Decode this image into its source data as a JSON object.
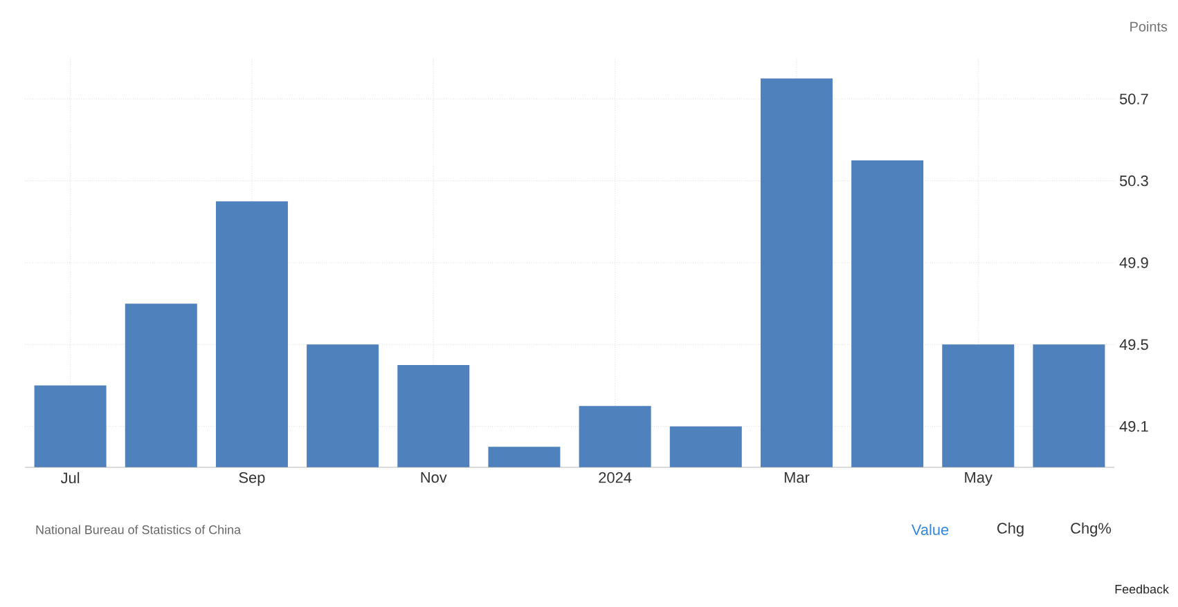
{
  "chart_data": {
    "type": "bar",
    "ylabel": "Points",
    "categories": [
      "Jul",
      null,
      "Sep",
      null,
      "Nov",
      null,
      "2024",
      null,
      "Mar",
      null,
      "May",
      null
    ],
    "values": [
      49.3,
      49.7,
      50.2,
      49.5,
      49.4,
      49.0,
      49.2,
      49.1,
      50.8,
      50.4,
      49.5,
      49.5
    ],
    "color": "#4f81bd",
    "ylim": [
      48.9,
      50.9
    ],
    "yticks": [
      49.1,
      49.5,
      49.9,
      50.3,
      50.7
    ],
    "grid": true,
    "annotations": [
      "National Bureau of Statistics of China",
      "Value",
      "Chg",
      "Chg%",
      "Feedback"
    ]
  }
}
